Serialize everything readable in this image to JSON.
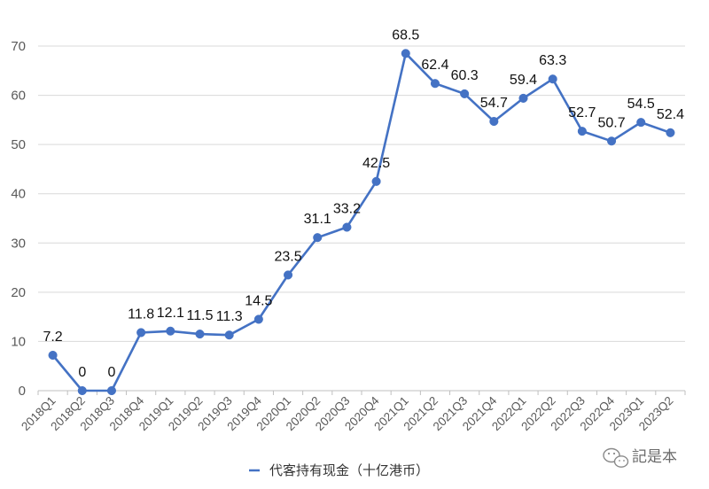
{
  "chart_data": {
    "type": "line",
    "categories": [
      "2018Q1",
      "2018Q2",
      "2018Q3",
      "2018Q4",
      "2019Q1",
      "2019Q2",
      "2019Q3",
      "2019Q4",
      "2020Q1",
      "2020Q2",
      "2020Q3",
      "2020Q4",
      "2021Q1",
      "2021Q2",
      "2021Q3",
      "2021Q4",
      "2022Q1",
      "2022Q2",
      "2022Q3",
      "2022Q4",
      "2023Q1",
      "2023Q2"
    ],
    "series": [
      {
        "name": "代客持有现金（十亿港币）",
        "values": [
          7.2,
          0,
          0,
          11.8,
          12.1,
          11.5,
          11.3,
          14.5,
          23.5,
          31.1,
          33.2,
          42.5,
          68.5,
          62.4,
          60.3,
          54.7,
          59.4,
          63.3,
          52.7,
          50.7,
          54.5,
          52.4
        ],
        "labels": [
          "7.2",
          "0",
          "0",
          "11.8",
          "12.1",
          "11.5",
          "11.3",
          "14.5",
          "23.5",
          "31.1",
          "33.2",
          "42.5",
          "68.5",
          "62.4",
          "60.3",
          "54.7",
          "59.4",
          "63.3",
          "52.7",
          "50.7",
          "54.5",
          "52.4"
        ]
      }
    ],
    "yticks": [
      "0",
      "10",
      "20",
      "30",
      "40",
      "50",
      "60",
      "70"
    ],
    "ylim": [
      0,
      70
    ],
    "grid": "horizontal",
    "legend": "bottom-center",
    "line_color": "#4472c4"
  },
  "watermark": {
    "text": "記是本",
    "icon": "wechat-icon"
  }
}
